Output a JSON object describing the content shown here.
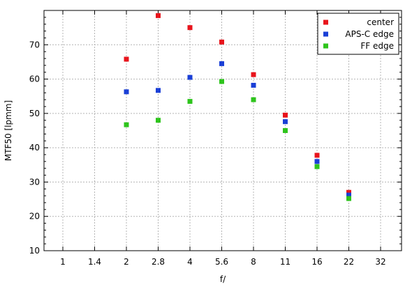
{
  "chart_data": {
    "type": "scatter",
    "xlabel": "f/",
    "ylabel": "MTF50 [lpmm]",
    "x_categories": [
      "1",
      "1.4",
      "2",
      "2.8",
      "4",
      "5.6",
      "8",
      "11",
      "16",
      "22",
      "32"
    ],
    "ylim": [
      10,
      80
    ],
    "y_ticks": [
      10,
      20,
      30,
      40,
      50,
      60,
      70
    ],
    "grid": true,
    "legend_position": "top-right",
    "series": [
      {
        "name": "center",
        "color": "#e8141c",
        "points": [
          {
            "x": "2",
            "y": 65.8
          },
          {
            "x": "2.8",
            "y": 78.5
          },
          {
            "x": "4",
            "y": 75.0
          },
          {
            "x": "5.6",
            "y": 70.8
          },
          {
            "x": "8",
            "y": 61.3
          },
          {
            "x": "11",
            "y": 49.5
          },
          {
            "x": "16",
            "y": 37.8
          },
          {
            "x": "22",
            "y": 27.0
          }
        ]
      },
      {
        "name": "APS-C edge",
        "color": "#1a3fd6",
        "points": [
          {
            "x": "2",
            "y": 56.3
          },
          {
            "x": "2.8",
            "y": 56.7
          },
          {
            "x": "4",
            "y": 60.5
          },
          {
            "x": "5.6",
            "y": 64.5
          },
          {
            "x": "8",
            "y": 58.2
          },
          {
            "x": "11",
            "y": 47.6
          },
          {
            "x": "16",
            "y": 36.0
          },
          {
            "x": "22",
            "y": 26.2
          }
        ]
      },
      {
        "name": "FF edge",
        "color": "#2ec41c",
        "points": [
          {
            "x": "2",
            "y": 46.7
          },
          {
            "x": "2.8",
            "y": 48.0
          },
          {
            "x": "4",
            "y": 53.5
          },
          {
            "x": "5.6",
            "y": 59.3
          },
          {
            "x": "8",
            "y": 54.0
          },
          {
            "x": "11",
            "y": 45.0
          },
          {
            "x": "16",
            "y": 34.5
          },
          {
            "x": "22",
            "y": 25.2
          }
        ]
      }
    ]
  }
}
